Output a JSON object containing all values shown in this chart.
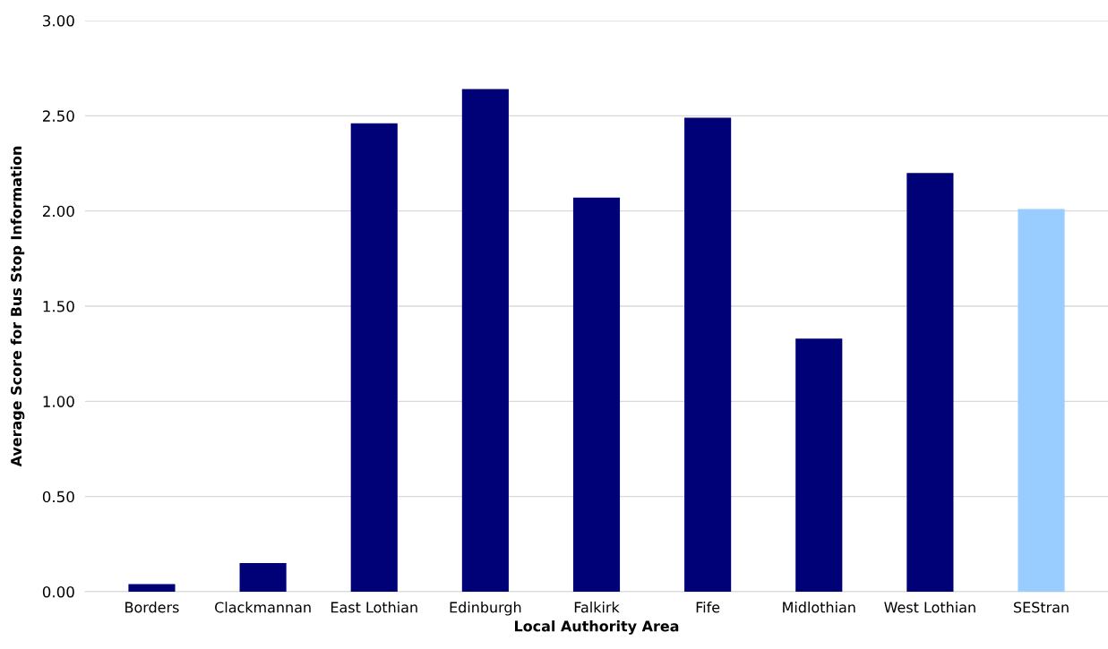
{
  "chart_data": {
    "type": "bar",
    "xlabel": "Local Authority Area",
    "ylabel": "Average Score for Bus Stop Information",
    "categories": [
      "Borders",
      "Clackmannan",
      "East Lothian",
      "Edinburgh",
      "Falkirk",
      "Fife",
      "Midlothian",
      "West Lothian",
      "SEStran"
    ],
    "values": [
      0.04,
      0.15,
      2.46,
      2.64,
      2.07,
      2.49,
      1.33,
      2.2,
      2.01
    ],
    "colors": [
      "#000077",
      "#000077",
      "#000077",
      "#000077",
      "#000077",
      "#000077",
      "#000077",
      "#000077",
      "#99ccff"
    ],
    "ylim": [
      0,
      3
    ],
    "yticks": [
      {
        "value": 0,
        "label": "0.00"
      },
      {
        "value": 0.5,
        "label": "0.50"
      },
      {
        "value": 1,
        "label": "1.00"
      },
      {
        "value": 1.5,
        "label": "1.50"
      },
      {
        "value": 2,
        "label": "2.00"
      },
      {
        "value": 2.5,
        "label": "2.50"
      },
      {
        "value": 3,
        "label": "3.00"
      }
    ],
    "grid": "y",
    "legend": false
  }
}
